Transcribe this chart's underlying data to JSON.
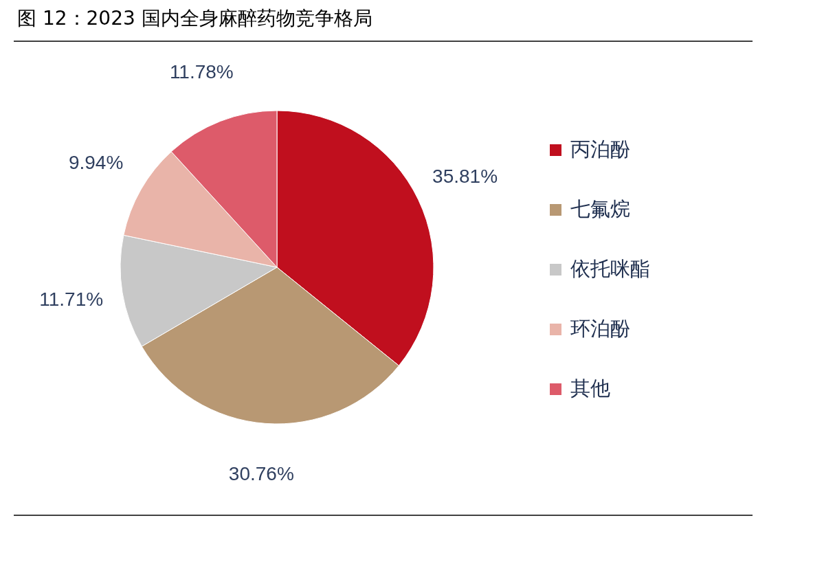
{
  "chart_data": {
    "type": "pie",
    "title": "图 12：2023 国内全身麻醉药物竞争格局",
    "categories": [
      "丙泊酚",
      "七氟烷",
      "依托咪酯",
      "环泊酚",
      "其他"
    ],
    "values": [
      35.81,
      30.76,
      11.71,
      9.94,
      11.78
    ],
    "colors": [
      "#c00f1e",
      "#b89873",
      "#c8c8c8",
      "#e9b4a9",
      "#dd5b6a"
    ],
    "value_labels": [
      "35.81%",
      "30.76%",
      "11.71%",
      "9.94%",
      "11.78%"
    ],
    "legend": "right"
  }
}
